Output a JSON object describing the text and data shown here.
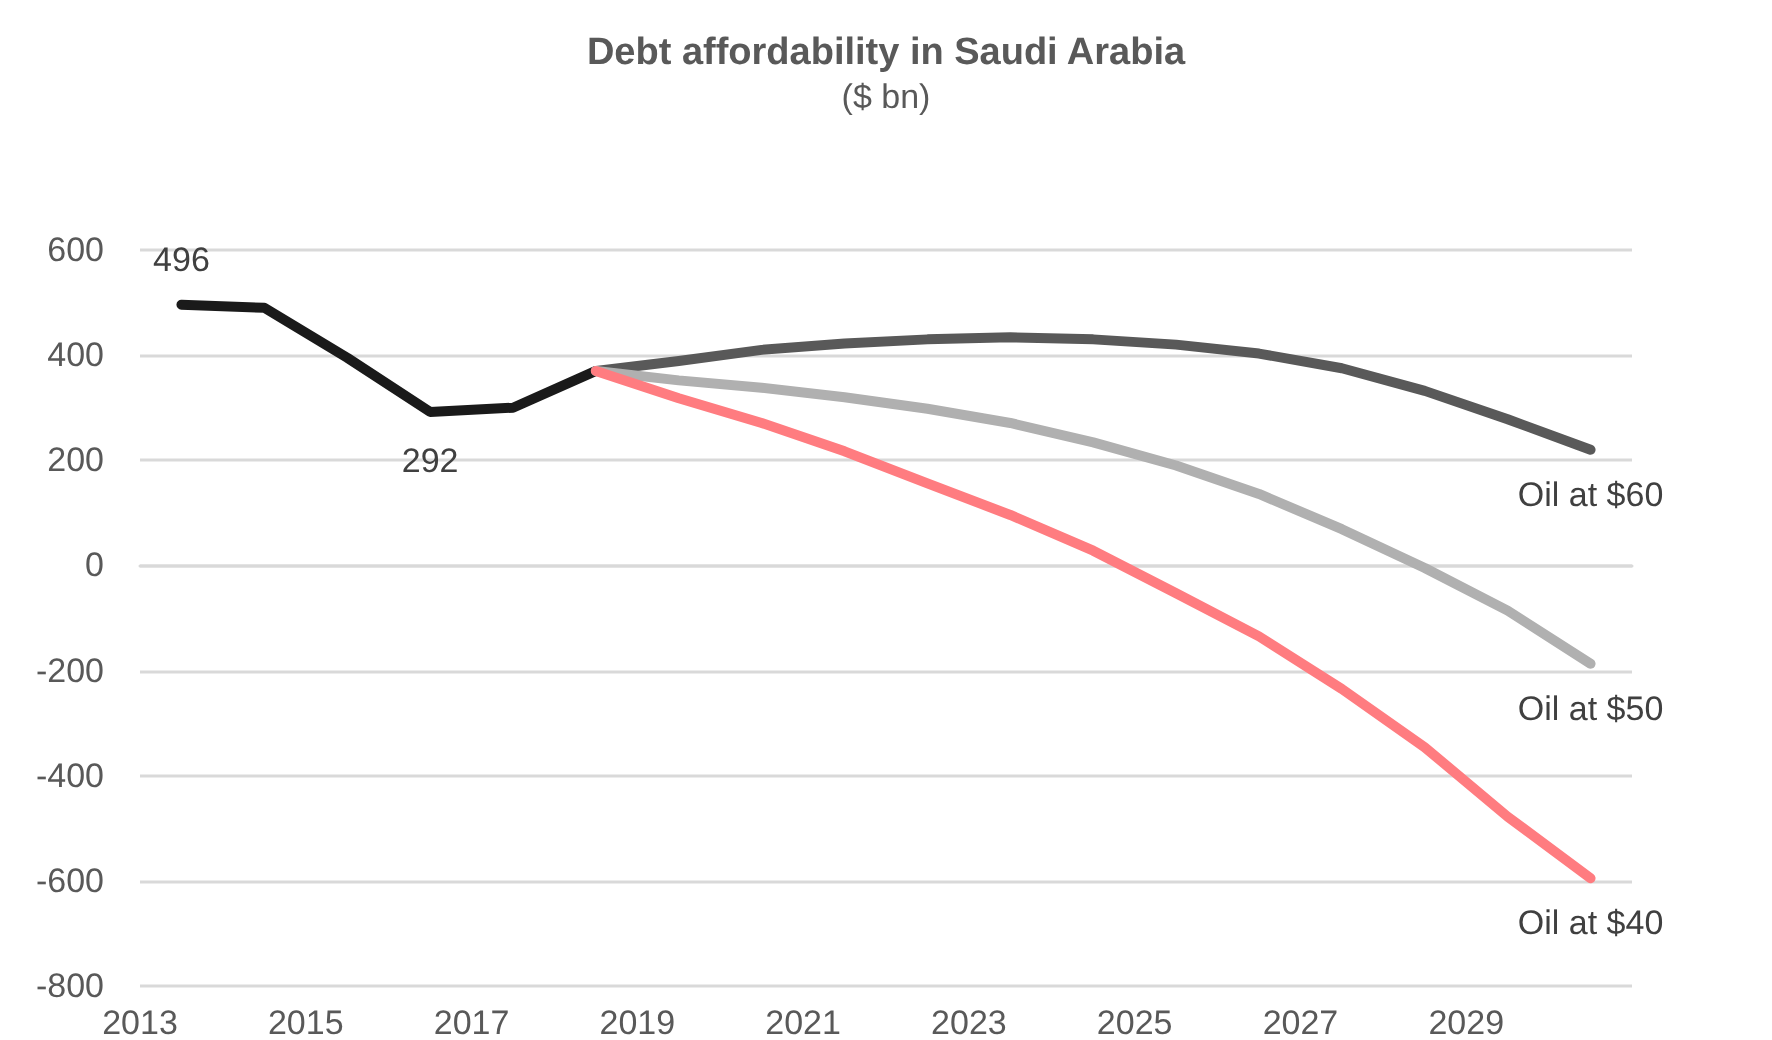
{
  "chart_data": {
    "type": "line",
    "title": "Debt affordability in Saudi Arabia",
    "subtitle": "($ bn)",
    "xlim": [
      2013,
      2031
    ],
    "xticks": [
      2013,
      2015,
      2017,
      2019,
      2021,
      2023,
      2025,
      2027,
      2029
    ],
    "ylim": [
      -800,
      600
    ],
    "yticks": [
      -800,
      -600,
      -400,
      -200,
      0,
      200,
      400,
      600
    ],
    "grid": "y",
    "legend": false,
    "marker": "none",
    "line_style": "solid",
    "series": [
      {
        "color": "#1a1a1a",
        "x": [
          2013.5,
          2014.5,
          2015.5,
          2016.5,
          2017.5,
          2018.5
        ],
        "values": [
          496,
          490,
          395,
          292,
          300,
          370
        ],
        "value_labels": [
          "496",
          null,
          null,
          "292",
          null,
          null
        ]
      },
      {
        "name": "Oil at $60",
        "color": "#595959",
        "x": [
          2018.5,
          2019.5,
          2020.5,
          2021.5,
          2022.5,
          2023.5,
          2024.5,
          2025.5,
          2026.5,
          2027.5,
          2028.5,
          2029.5,
          2030.5
        ],
        "values": [
          370,
          389,
          410,
          422,
          430,
          434,
          430,
          420,
          403,
          375,
          332,
          278,
          220
        ]
      },
      {
        "name": "Oil at $50",
        "color": "#b0b0b0",
        "x": [
          2018.5,
          2019.5,
          2020.5,
          2021.5,
          2022.5,
          2023.5,
          2024.5,
          2025.5,
          2026.5,
          2027.5,
          2028.5,
          2029.5,
          2030.5
        ],
        "values": [
          370,
          352,
          338,
          320,
          298,
          271,
          234,
          190,
          136,
          69,
          -5,
          -86,
          -187
        ]
      },
      {
        "name": "Oil at $40",
        "color": "#ff7c80",
        "x": [
          2018.5,
          2019.5,
          2020.5,
          2021.5,
          2022.5,
          2023.5,
          2024.5,
          2025.5,
          2026.5,
          2027.5,
          2028.5,
          2029.5,
          2030.5
        ],
        "values": [
          370,
          318,
          271,
          217,
          156,
          96,
          28,
          -53,
          -135,
          -235,
          -346,
          -478,
          -595
        ]
      }
    ]
  }
}
